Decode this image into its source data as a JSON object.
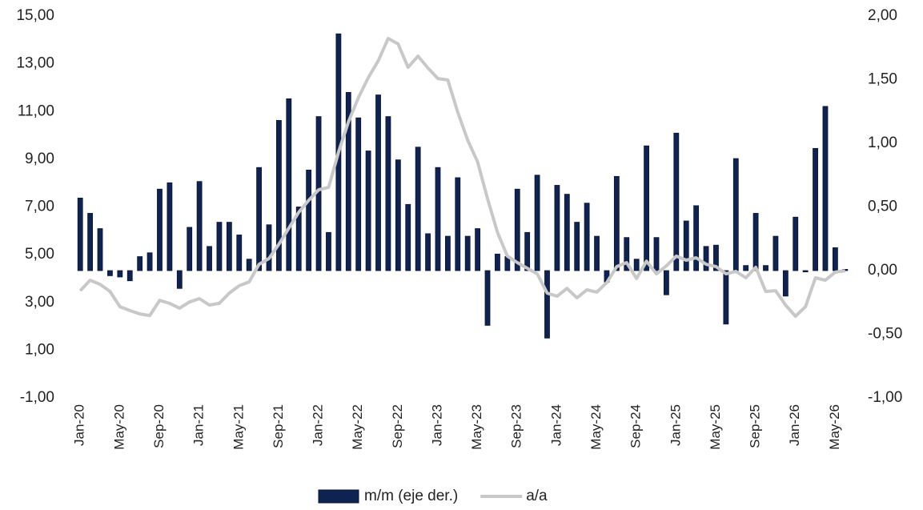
{
  "chart_data": {
    "type": "bar",
    "categories": [
      "Jan-20",
      null,
      null,
      null,
      "May-20",
      null,
      null,
      null,
      "Sep-20",
      null,
      null,
      null,
      "Jan-21",
      null,
      null,
      null,
      "May-21",
      null,
      null,
      null,
      "Sep-21",
      null,
      null,
      null,
      "Jan-22",
      null,
      null,
      null,
      "May-22",
      null,
      null,
      null,
      "Sep-22",
      null,
      null,
      null,
      "Jan-23",
      null,
      null,
      null,
      "May-23",
      null,
      null,
      null,
      "Sep-23",
      null,
      null,
      null,
      "Jan-24",
      null,
      null,
      null,
      "May-24",
      null,
      null,
      null,
      "Sep-24",
      null,
      null,
      null,
      "Jan-25",
      null,
      null,
      null,
      "May-25",
      null,
      null,
      null,
      "Sep-25",
      null,
      null,
      null,
      "Jan-26",
      null,
      null,
      null,
      "May-26",
      null
    ],
    "series": [
      {
        "name": "m/m (eje der.)",
        "type": "bar",
        "axis": "y2",
        "color": "#0f2352",
        "values": [
          0.57,
          0.45,
          0.33,
          -0.04,
          -0.05,
          -0.08,
          0.11,
          0.14,
          0.64,
          0.69,
          -0.14,
          0.34,
          0.7,
          0.19,
          0.38,
          0.38,
          0.28,
          0.09,
          0.81,
          0.36,
          1.18,
          1.35,
          0.5,
          0.79,
          1.21,
          0.3,
          1.86,
          1.4,
          1.2,
          0.94,
          1.38,
          1.21,
          0.87,
          0.52,
          0.97,
          0.29,
          0.81,
          0.27,
          0.73,
          0.27,
          0.33,
          -0.43,
          0.13,
          0.11,
          0.64,
          0.3,
          0.75,
          -0.53,
          0.67,
          0.6,
          0.38,
          0.53,
          0.27,
          -0.09,
          0.74,
          0.26,
          0.09,
          0.98,
          0.26,
          -0.19,
          1.08,
          0.39,
          0.51,
          0.19,
          0.2,
          -0.42,
          0.88,
          0.04,
          0.45,
          0.04,
          0.27,
          -0.2,
          0.42,
          -0.01,
          0.96,
          1.29,
          0.18,
          0.01
        ]
      },
      {
        "name": "a/a",
        "type": "line",
        "axis": "y",
        "color": "#c8c8c8",
        "values": [
          3.49,
          3.93,
          3.76,
          3.46,
          2.82,
          2.66,
          2.52,
          2.45,
          3.09,
          2.96,
          2.76,
          3.02,
          3.16,
          2.89,
          2.96,
          3.39,
          3.7,
          3.86,
          4.6,
          4.84,
          5.44,
          6.11,
          6.78,
          7.28,
          7.72,
          7.82,
          9.3,
          10.57,
          11.58,
          12.42,
          13.12,
          14.06,
          13.83,
          12.85,
          13.32,
          12.82,
          12.38,
          12.32,
          10.97,
          9.8,
          8.89,
          7.35,
          5.94,
          4.94,
          4.67,
          4.43,
          4.2,
          3.39,
          3.26,
          3.59,
          3.19,
          3.53,
          3.43,
          3.83,
          4.5,
          4.67,
          4.0,
          4.73,
          4.2,
          4.53,
          4.94,
          4.77,
          4.87,
          4.6,
          4.5,
          4.2,
          4.3,
          4.03,
          4.47,
          3.46,
          3.49,
          2.89,
          2.42,
          2.82,
          4.03,
          3.93,
          4.27,
          4.33
        ]
      }
    ],
    "ylim": [
      -1,
      15
    ],
    "yticks": [
      {
        "value": -1,
        "label": "-1,00"
      },
      {
        "value": 1,
        "label": "1,00"
      },
      {
        "value": 3,
        "label": "3,00"
      },
      {
        "value": 5,
        "label": "5,00"
      },
      {
        "value": 7,
        "label": "7,00"
      },
      {
        "value": 9,
        "label": "9,00"
      },
      {
        "value": 11,
        "label": "11,00"
      },
      {
        "value": 13,
        "label": "13,00"
      },
      {
        "value": 15,
        "label": "15,00"
      }
    ],
    "y2lim": [
      -1,
      2
    ],
    "y2ticks": [
      {
        "value": -1,
        "label": "-1,00"
      },
      {
        "value": -0.5,
        "label": "-0,50"
      },
      {
        "value": 0,
        "label": "0,00"
      },
      {
        "value": 0.5,
        "label": "0,50"
      },
      {
        "value": 1,
        "label": "1,00"
      },
      {
        "value": 1.5,
        "label": "1,50"
      },
      {
        "value": 2,
        "label": "2,00"
      }
    ],
    "grid": false,
    "legend": "bottom"
  }
}
